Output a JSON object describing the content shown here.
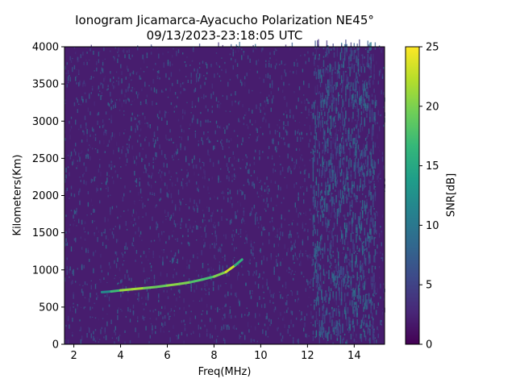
{
  "chart_data": {
    "type": "heatmap",
    "title": "Ionogram Jicamarca-Ayacucho Polarization NE45°",
    "subtitle": "09/13/2023-23:18:05 UTC",
    "xlabel": "Freq(MHz)",
    "ylabel": "Kilometers(Km)",
    "colorbar_label": "SNR[dB]",
    "xlim": [
      1.6,
      15.3
    ],
    "ylim": [
      0,
      4000
    ],
    "x_ticks": [
      2,
      4,
      6,
      8,
      10,
      12,
      14
    ],
    "y_ticks": [
      0,
      500,
      1000,
      1500,
      2000,
      2500,
      3000,
      3500,
      4000
    ],
    "colorbar_range": [
      0,
      25
    ],
    "colorbar_ticks": [
      0,
      5,
      10,
      15,
      20,
      25
    ],
    "colormap": "viridis",
    "colormap_stops": [
      "#440154",
      "#482878",
      "#3e4989",
      "#31688e",
      "#26828e",
      "#1f9e89",
      "#35b779",
      "#6ece58",
      "#b5de2b",
      "#fde725"
    ],
    "echo_trace": [
      {
        "freq": 3.2,
        "range": 700,
        "snr": 10
      },
      {
        "freq": 3.6,
        "range": 710,
        "snr": 14
      },
      {
        "freq": 4.0,
        "range": 725,
        "snr": 20
      },
      {
        "freq": 4.5,
        "range": 740,
        "snr": 22
      },
      {
        "freq": 5.0,
        "range": 755,
        "snr": 21
      },
      {
        "freq": 5.5,
        "range": 770,
        "snr": 18
      },
      {
        "freq": 6.0,
        "range": 790,
        "snr": 20
      },
      {
        "freq": 6.5,
        "range": 810,
        "snr": 21
      },
      {
        "freq": 7.0,
        "range": 835,
        "snr": 19
      },
      {
        "freq": 7.5,
        "range": 870,
        "snr": 17
      },
      {
        "freq": 8.0,
        "range": 910,
        "snr": 18
      },
      {
        "freq": 8.5,
        "range": 970,
        "snr": 22
      },
      {
        "freq": 8.9,
        "range": 1060,
        "snr": 24
      },
      {
        "freq": 9.2,
        "range": 1140,
        "snr": 8
      }
    ],
    "high_noise_band": {
      "freq_min": 12.2,
      "freq_max": 14.9,
      "snr": 8
    },
    "background_snr": 2
  }
}
